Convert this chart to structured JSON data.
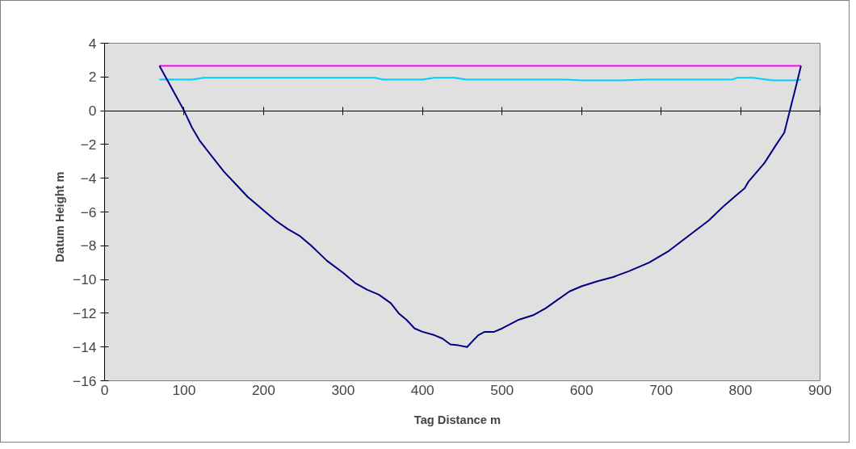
{
  "chart_data": {
    "type": "line",
    "xlabel": "Tag Distance    m",
    "ylabel": "Datum Height    m",
    "xlim": [
      0,
      900
    ],
    "xticks": [
      0,
      100,
      200,
      300,
      400,
      500,
      600,
      700,
      800,
      900
    ],
    "ylim": [
      -16,
      4
    ],
    "yticks": [
      -16,
      -14,
      -12,
      -10,
      -8,
      -6,
      -4,
      -2,
      0,
      2,
      4
    ],
    "marker": "none",
    "line_style": "solid",
    "series": [
      {
        "color": "#ff00ff",
        "x": [
          69,
          876
        ],
        "values": [
          2.66,
          2.66
        ]
      },
      {
        "color": "#00ccff",
        "x": [
          69,
          110,
          125,
          340,
          350,
          400,
          415,
          440,
          455,
          580,
          600,
          650,
          680,
          790,
          795,
          815,
          840,
          870,
          876
        ],
        "values": [
          1.85,
          1.85,
          1.95,
          1.95,
          1.85,
          1.85,
          1.95,
          1.95,
          1.85,
          1.85,
          1.8,
          1.8,
          1.85,
          1.85,
          1.95,
          1.95,
          1.8,
          1.8,
          1.85
        ]
      },
      {
        "color": "#000080",
        "x": [
          69,
          100,
          110,
          120,
          135,
          150,
          170,
          180,
          200,
          215,
          230,
          245,
          260,
          280,
          300,
          315,
          330,
          345,
          360,
          370,
          380,
          390,
          400,
          415,
          425,
          435,
          445,
          456,
          462,
          470,
          478,
          490,
          500,
          520,
          540,
          555,
          570,
          585,
          600,
          620,
          640,
          660,
          685,
          710,
          735,
          760,
          780,
          795,
          805,
          810,
          830,
          845,
          855,
          862,
          870,
          876
        ],
        "values": [
          2.66,
          0,
          -1,
          -1.8,
          -2.7,
          -3.6,
          -4.6,
          -5.1,
          -5.9,
          -6.5,
          -7.0,
          -7.4,
          -8.0,
          -8.9,
          -9.6,
          -10.2,
          -10.6,
          -10.9,
          -11.4,
          -12.0,
          -12.4,
          -12.9,
          -13.1,
          -13.3,
          -13.5,
          -13.85,
          -13.9,
          -14.0,
          -13.7,
          -13.3,
          -13.1,
          -13.1,
          -12.9,
          -12.4,
          -12.1,
          -11.7,
          -11.2,
          -10.7,
          -10.4,
          -10.1,
          -9.85,
          -9.5,
          -9.0,
          -8.3,
          -7.4,
          -6.5,
          -5.6,
          -5.0,
          -4.6,
          -4.2,
          -3.1,
          -2.0,
          -1.3,
          0,
          1.5,
          2.66
        ]
      }
    ]
  }
}
